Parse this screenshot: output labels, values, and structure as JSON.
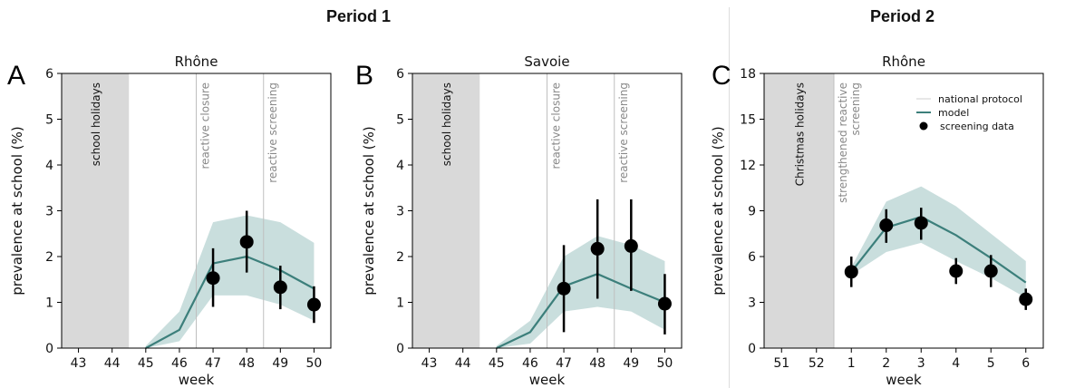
{
  "headers": {
    "period1": "Period 1",
    "period2": "Period 2"
  },
  "colors": {
    "model_line": "#3c7f7b",
    "band": "#b7d3d1",
    "holiday": "#d9d9d9",
    "data_point": "#000000",
    "vline": "#bfbfbf",
    "annotation": "#888888"
  },
  "chart_data": [
    {
      "type": "line",
      "panel_letter": "A",
      "title": "Rhône",
      "xlabel": "week",
      "ylabel": "prevalence at school (%)",
      "x_categories": [
        "43",
        "44",
        "45",
        "46",
        "47",
        "48",
        "49",
        "50"
      ],
      "ylim": [
        0,
        6
      ],
      "yticks": [
        0,
        1,
        2,
        3,
        4,
        5,
        6
      ],
      "holiday_band": {
        "from_index": -0.5,
        "to_index": 1.5,
        "label": "school holidays"
      },
      "vlines": [
        {
          "at_index": 3.5,
          "label": "reactive closure"
        },
        {
          "at_index": 5.5,
          "label": "reactive screening"
        }
      ],
      "model": {
        "x_index": [
          2,
          3,
          4,
          5,
          6,
          7
        ],
        "values": [
          0.0,
          0.4,
          1.85,
          2.0,
          1.7,
          1.3
        ]
      },
      "band": {
        "x_index": [
          2,
          3,
          4,
          5,
          6,
          7
        ],
        "upper": [
          0.05,
          0.8,
          2.75,
          2.9,
          2.75,
          2.3
        ],
        "lower": [
          0.0,
          0.15,
          1.15,
          1.15,
          0.95,
          0.6
        ]
      },
      "screening": {
        "x_index": [
          4,
          5,
          6,
          7
        ],
        "values": [
          1.53,
          2.32,
          1.33,
          0.95
        ],
        "err_low": [
          0.9,
          1.65,
          0.85,
          0.55
        ],
        "err_high": [
          2.18,
          3.0,
          1.8,
          1.35
        ]
      }
    },
    {
      "type": "line",
      "panel_letter": "B",
      "title": "Savoie",
      "xlabel": "week",
      "ylabel": "prevalence at school (%)",
      "x_categories": [
        "43",
        "44",
        "45",
        "46",
        "47",
        "48",
        "49",
        "50"
      ],
      "ylim": [
        0,
        6
      ],
      "yticks": [
        0,
        1,
        2,
        3,
        4,
        5,
        6
      ],
      "holiday_band": {
        "from_index": -0.5,
        "to_index": 1.5,
        "label": "school holidays"
      },
      "vlines": [
        {
          "at_index": 3.5,
          "label": "reactive closure"
        },
        {
          "at_index": 5.5,
          "label": "reactive screening"
        }
      ],
      "model": {
        "x_index": [
          2,
          3,
          4,
          5,
          6,
          7
        ],
        "values": [
          0.0,
          0.35,
          1.35,
          1.62,
          1.3,
          1.0
        ]
      },
      "band": {
        "x_index": [
          2,
          3,
          4,
          5,
          6,
          7
        ],
        "upper": [
          0.05,
          0.6,
          2.0,
          2.45,
          2.25,
          1.9
        ],
        "lower": [
          0.0,
          0.1,
          0.8,
          0.9,
          0.8,
          0.4
        ]
      },
      "screening": {
        "x_index": [
          4,
          5,
          6,
          7
        ],
        "values": [
          1.3,
          2.17,
          2.23,
          0.97
        ],
        "err_low": [
          0.35,
          1.08,
          1.25,
          0.3
        ],
        "err_high": [
          2.25,
          3.25,
          3.25,
          1.62
        ]
      }
    },
    {
      "type": "line",
      "panel_letter": "C",
      "title": "Rhône",
      "xlabel": "week",
      "ylabel": "prevalence at school (%)",
      "x_categories": [
        "51",
        "52",
        "1",
        "2",
        "3",
        "4",
        "5",
        "6"
      ],
      "ylim": [
        0,
        18
      ],
      "yticks": [
        0,
        3,
        6,
        9,
        12,
        15,
        18
      ],
      "holiday_band": {
        "from_index": -0.5,
        "to_index": 1.5,
        "label": "Christmas holidays"
      },
      "vlines": [
        {
          "at_index": 1.5,
          "label_lines": [
            "strengthened reactive",
            "screening"
          ]
        }
      ],
      "legend": {
        "position": "top-right",
        "entries": [
          "national protocol",
          "model",
          "screening data"
        ]
      },
      "model": {
        "x_index": [
          2,
          3,
          4,
          5,
          6,
          7
        ],
        "values": [
          5.0,
          7.9,
          8.6,
          7.4,
          5.9,
          4.3
        ]
      },
      "band": {
        "x_index": [
          2,
          3,
          4,
          5,
          6,
          7
        ],
        "upper": [
          5.3,
          9.6,
          10.6,
          9.3,
          7.5,
          5.7
        ],
        "lower": [
          4.8,
          6.3,
          6.9,
          5.7,
          4.6,
          3.3
        ]
      },
      "screening": {
        "x_index": [
          2,
          3,
          4,
          5,
          6,
          7
        ],
        "values": [
          5.0,
          8.05,
          8.2,
          5.05,
          5.05,
          3.2
        ],
        "err_low": [
          4.0,
          6.9,
          7.1,
          4.2,
          4.0,
          2.5
        ],
        "err_high": [
          6.0,
          9.1,
          9.2,
          5.9,
          6.1,
          3.9
        ]
      }
    }
  ]
}
